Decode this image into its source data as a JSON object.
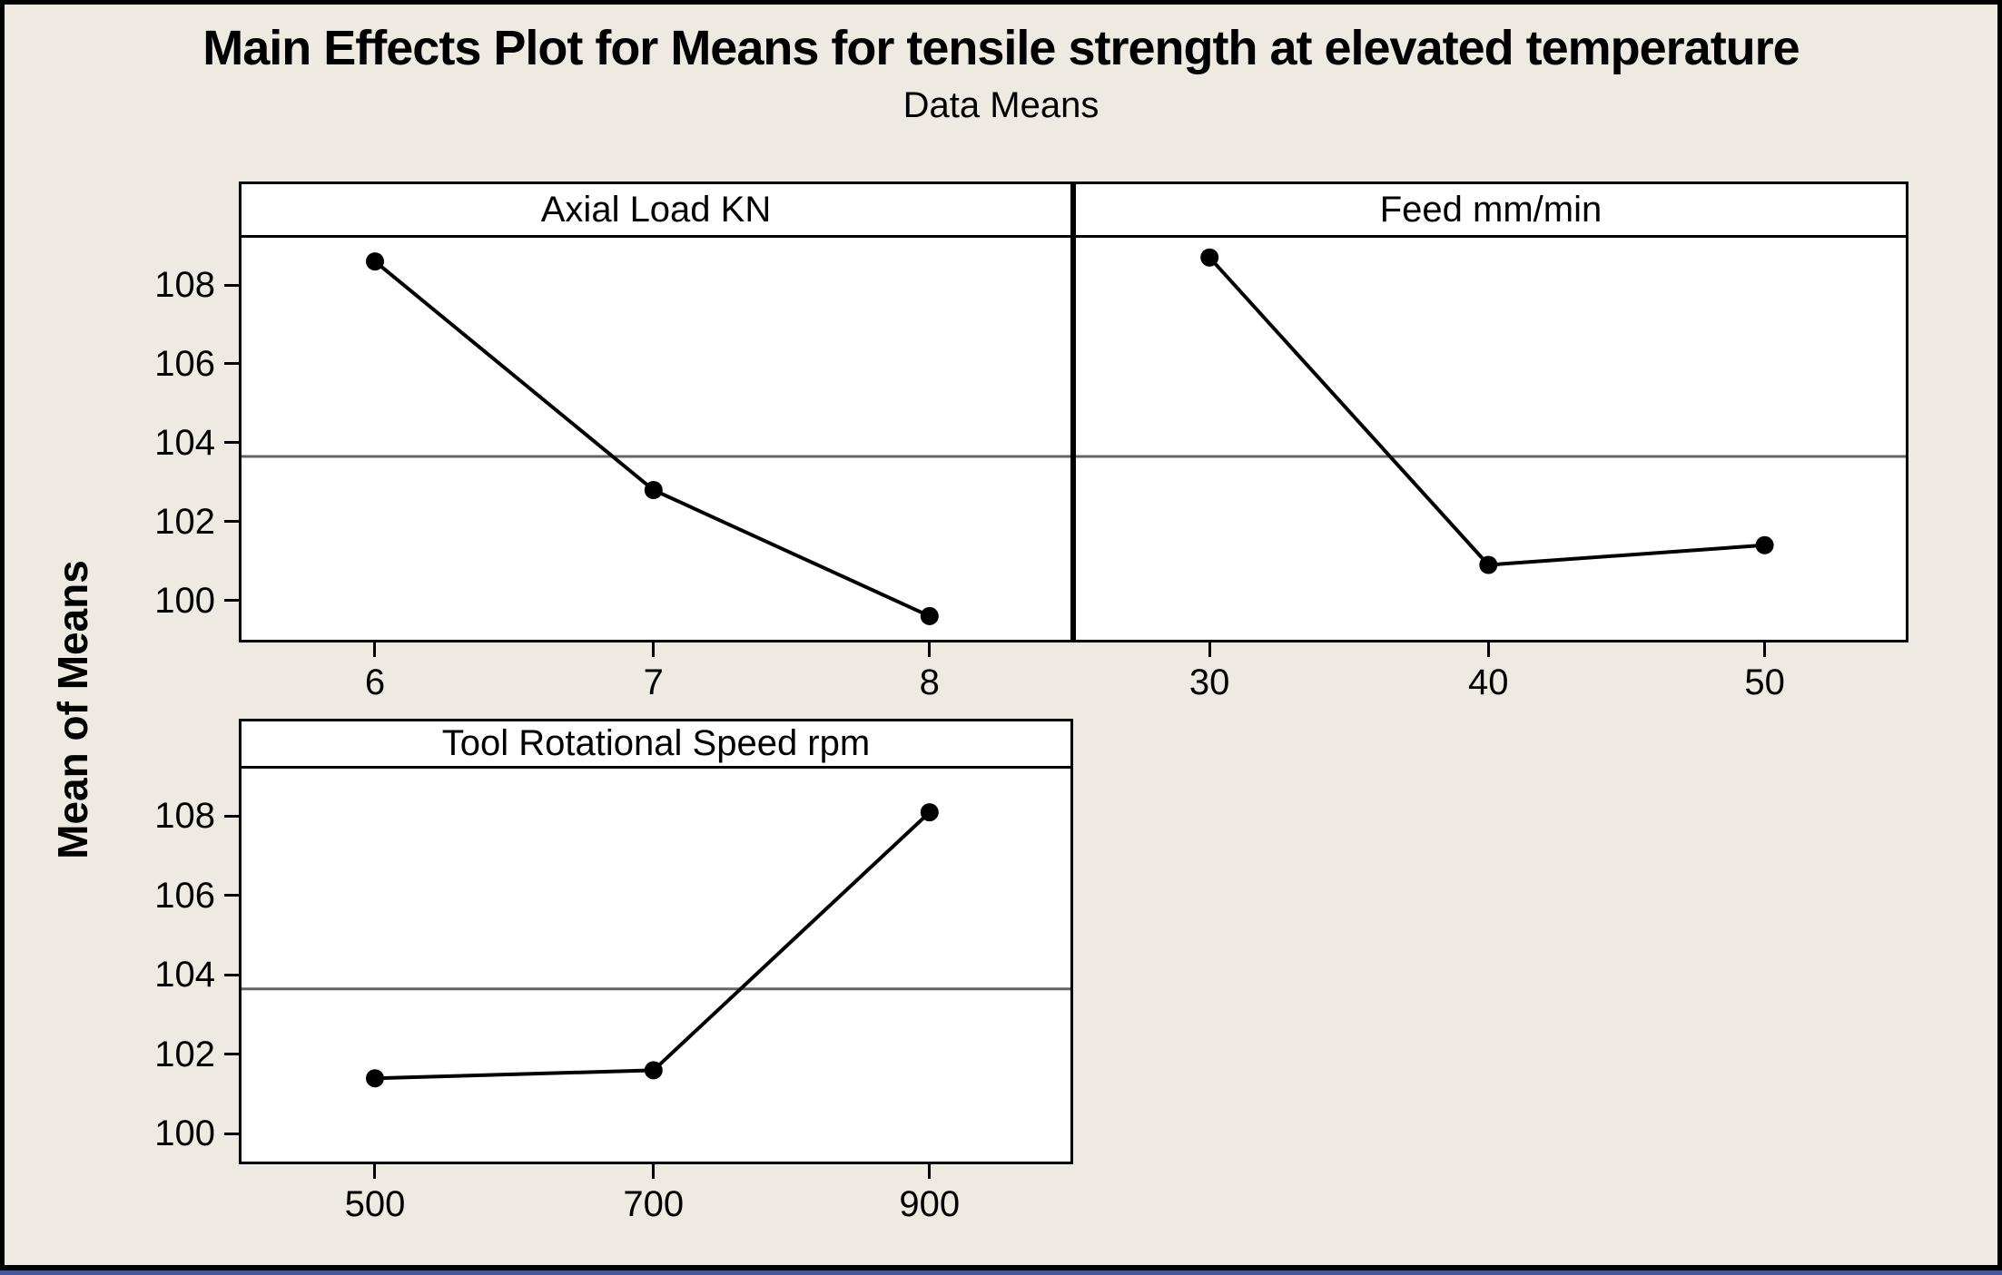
{
  "figure": {
    "title": "Main Effects Plot for Means for tensile strength at elevated temperature",
    "subtitle": "Data Means",
    "ylabel": "Mean of Means"
  },
  "colors": {
    "background": "#EEE9E1",
    "panel_fill": "#FFFFFF",
    "border": "#000000",
    "series": "#000000",
    "reference_line": "#646464",
    "bottom_edge_line": "#44589E"
  },
  "chart_data": {
    "type": "line",
    "title": "Main Effects Plot for Means for tensile strength at elevated temperature",
    "subtitle": "Data Means",
    "ylabel": "Mean of Means",
    "grid": false,
    "legend_position": "none",
    "marker": "filled-circle",
    "yticks": [
      100,
      102,
      104,
      106,
      108
    ],
    "reference_line_grand_mean": 103.65,
    "panels": [
      {
        "factor": "Axial Load KN",
        "categories": [
          "6",
          "7",
          "8"
        ],
        "values": [
          108.6,
          102.8,
          99.6
        ],
        "ylim": [
          99.0,
          109.2
        ]
      },
      {
        "factor": "Feed mm/min",
        "categories": [
          "30",
          "40",
          "50"
        ],
        "values": [
          108.7,
          100.9,
          101.4
        ],
        "ylim": [
          99.0,
          109.2
        ]
      },
      {
        "factor": "Tool Rotational Speed rpm",
        "categories": [
          "500",
          "700",
          "900"
        ],
        "values": [
          101.4,
          101.6,
          108.1
        ],
        "ylim": [
          99.3,
          109.2
        ]
      }
    ]
  }
}
